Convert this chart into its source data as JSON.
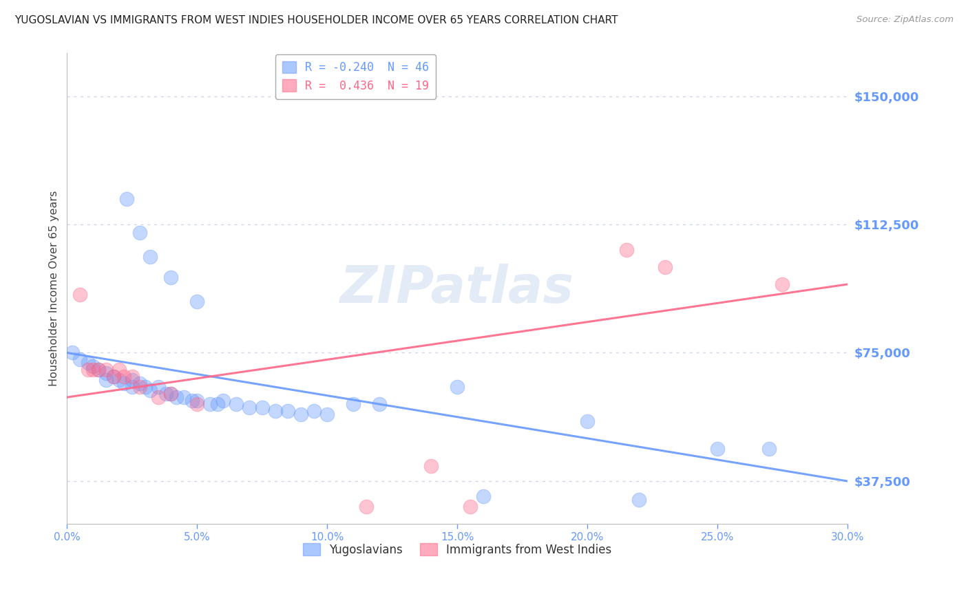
{
  "title": "YUGOSLAVIAN VS IMMIGRANTS FROM WEST INDIES HOUSEHOLDER INCOME OVER 65 YEARS CORRELATION CHART",
  "source": "Source: ZipAtlas.com",
  "ylabel": "Householder Income Over 65 years",
  "watermark": "ZIPatlas",
  "legend_entries": [
    {
      "label": "R = -0.240  N = 46",
      "color": "#6699ff"
    },
    {
      "label": "R =  0.436  N = 19",
      "color": "#ff6688"
    }
  ],
  "bottom_legend": [
    "Yugoslavians",
    "Immigrants from West Indies"
  ],
  "xlim": [
    0.0,
    0.3
  ],
  "ylim": [
    25000,
    162500
  ],
  "yticks": [
    37500,
    75000,
    112500,
    150000
  ],
  "ytick_labels": [
    "$37,500",
    "$75,000",
    "$112,500",
    "$150,000"
  ],
  "xticks": [
    0.0,
    0.05,
    0.1,
    0.15,
    0.2,
    0.25,
    0.3
  ],
  "xtick_labels": [
    "0.0%",
    "5.0%",
    "10.0%",
    "15.0%",
    "20.0%",
    "25.0%",
    "30.0%"
  ],
  "blue_color": "#6699ff",
  "pink_color": "#ff6688",
  "blue_scatter": [
    [
      0.002,
      75000
    ],
    [
      0.005,
      73000
    ],
    [
      0.008,
      72000
    ],
    [
      0.01,
      71000
    ],
    [
      0.012,
      70000
    ],
    [
      0.015,
      69000
    ],
    [
      0.015,
      67000
    ],
    [
      0.018,
      68000
    ],
    [
      0.02,
      67000
    ],
    [
      0.022,
      66000
    ],
    [
      0.025,
      67000
    ],
    [
      0.025,
      65000
    ],
    [
      0.028,
      66000
    ],
    [
      0.03,
      65000
    ],
    [
      0.032,
      64000
    ],
    [
      0.035,
      65000
    ],
    [
      0.038,
      63000
    ],
    [
      0.04,
      63000
    ],
    [
      0.042,
      62000
    ],
    [
      0.045,
      62000
    ],
    [
      0.048,
      61000
    ],
    [
      0.05,
      61000
    ],
    [
      0.055,
      60000
    ],
    [
      0.058,
      60000
    ],
    [
      0.06,
      61000
    ],
    [
      0.065,
      60000
    ],
    [
      0.07,
      59000
    ],
    [
      0.075,
      59000
    ],
    [
      0.08,
      58000
    ],
    [
      0.085,
      58000
    ],
    [
      0.09,
      57000
    ],
    [
      0.095,
      58000
    ],
    [
      0.1,
      57000
    ],
    [
      0.11,
      60000
    ],
    [
      0.12,
      60000
    ],
    [
      0.023,
      120000
    ],
    [
      0.028,
      110000
    ],
    [
      0.032,
      103000
    ],
    [
      0.04,
      97000
    ],
    [
      0.05,
      90000
    ],
    [
      0.15,
      65000
    ],
    [
      0.2,
      55000
    ],
    [
      0.25,
      47000
    ],
    [
      0.27,
      47000
    ],
    [
      0.22,
      32000
    ],
    [
      0.16,
      33000
    ]
  ],
  "pink_scatter": [
    [
      0.005,
      92000
    ],
    [
      0.008,
      70000
    ],
    [
      0.01,
      70000
    ],
    [
      0.012,
      70000
    ],
    [
      0.015,
      70000
    ],
    [
      0.018,
      68000
    ],
    [
      0.02,
      70000
    ],
    [
      0.022,
      68000
    ],
    [
      0.025,
      68000
    ],
    [
      0.028,
      65000
    ],
    [
      0.035,
      62000
    ],
    [
      0.04,
      63000
    ],
    [
      0.05,
      60000
    ],
    [
      0.14,
      42000
    ],
    [
      0.155,
      30000
    ],
    [
      0.215,
      105000
    ],
    [
      0.23,
      100000
    ],
    [
      0.275,
      95000
    ],
    [
      0.115,
      30000
    ]
  ],
  "blue_line": {
    "x0": 0.0,
    "y0": 75000,
    "x1": 0.3,
    "y1": 37500
  },
  "pink_line": {
    "x0": 0.0,
    "y0": 62000,
    "x1": 0.3,
    "y1": 95000
  },
  "title_color": "#333333",
  "axis_color": "#6699ff",
  "grid_color": "#d0d8e8",
  "background_color": "#ffffff"
}
